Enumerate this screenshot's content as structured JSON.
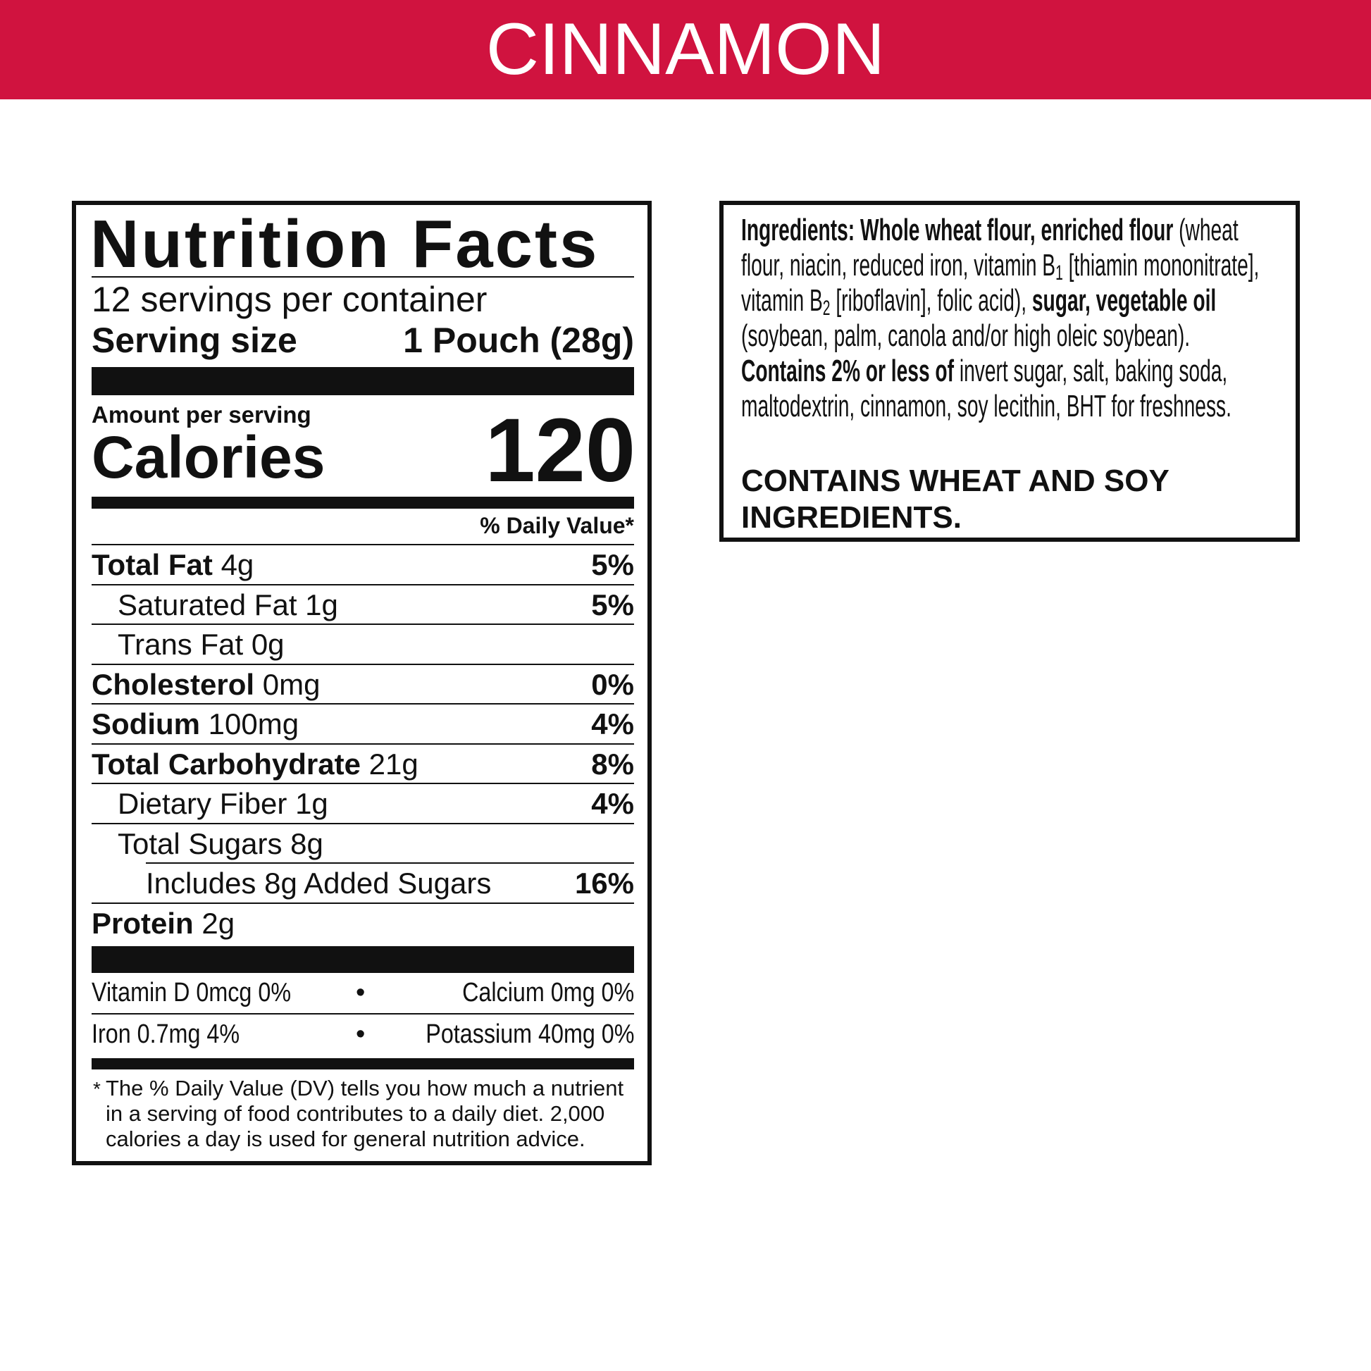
{
  "header": {
    "title": "CINNAMON"
  },
  "nutrition_facts": {
    "title": "Nutrition Facts",
    "servings": "12 servings per container",
    "serving_size_label": "Serving size",
    "serving_size": "1 Pouch (28g)",
    "amount_per_serving": "Amount per serving",
    "calories_label": "Calories",
    "calories": 120,
    "daily_value_header": "% Daily Value*",
    "rows": [
      {
        "name": "Total Fat",
        "amount": "4g",
        "dv": "5%",
        "bold": true,
        "indent": 0
      },
      {
        "name": "Saturated Fat",
        "amount": "1g",
        "dv": "5%",
        "bold": false,
        "indent": 1
      },
      {
        "name": "Trans Fat",
        "amount": "0g",
        "bold": false,
        "indent": 1
      },
      {
        "name": "Cholesterol",
        "amount": "0mg",
        "dv": "0%",
        "bold": true,
        "indent": 0
      },
      {
        "name": "Sodium",
        "amount": "100mg",
        "dv": "4%",
        "bold": true,
        "indent": 0
      },
      {
        "name": "Total Carbohydrate",
        "amount": "21g",
        "dv": "8%",
        "bold": true,
        "indent": 0
      },
      {
        "name": "Dietary Fiber",
        "amount": "1g",
        "dv": "4%",
        "bold": false,
        "indent": 1
      },
      {
        "name": "Total Sugars",
        "amount": "8g",
        "bold": false,
        "indent": 1
      },
      {
        "name": "Includes 8g Added Sugars",
        "dv": "16%",
        "bold": false,
        "indent": 2
      },
      {
        "name": "Protein",
        "amount": "2g",
        "bold": true,
        "indent": 0
      }
    ],
    "vitamins": [
      [
        "Vitamin D 0mcg 0%",
        "Calcium 0mg 0%"
      ],
      [
        "Iron 0.7mg 4%",
        "Potassium 40mg 0%"
      ]
    ],
    "footnote_mark": "*",
    "footnote": "The % Daily Value (DV) tells you how much a nutrient in a serving of food contributes to a daily diet. 2,000 calories a day is used for general nutrition advice."
  },
  "ingredients": {
    "paragraphs": [
      [
        {
          "text": "Ingredients: Whole wheat flour, enriched flour",
          "bold": true
        },
        {
          "text": " (wheat flour, niacin, reduced iron, vitamin B"
        },
        {
          "text": "1",
          "sub": true
        },
        {
          "text": " [thiamin mononitrate], vitamin B"
        },
        {
          "text": "2",
          "sub": true
        },
        {
          "text": " [riboflavin], folic acid), "
        },
        {
          "text": "sugar, vegetable oil",
          "bold": true
        },
        {
          "text": " (soybean, palm, canola and/or high oleic soybean)."
        }
      ],
      [
        {
          "text": "Contains 2% or less of",
          "bold": true
        },
        {
          "text": " invert sugar, salt, baking soda, maltodextrin, cinnamon, soy lecithin, BHT for freshness."
        }
      ]
    ],
    "allergen": "CONTAINS WHEAT AND SOY INGREDIENTS."
  }
}
